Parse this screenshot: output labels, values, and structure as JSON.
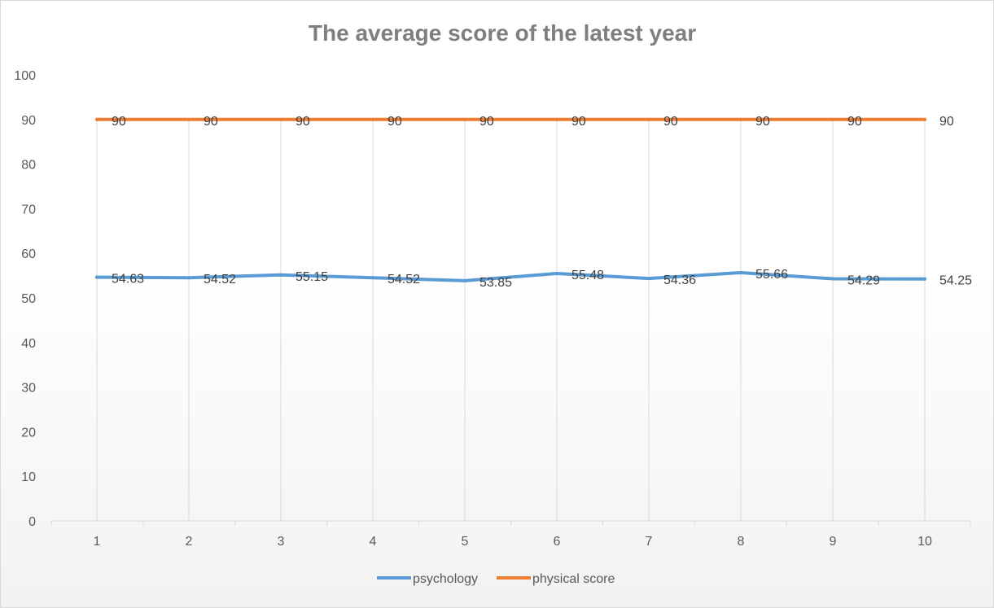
{
  "chart_data": {
    "type": "line",
    "title": "The average score of the latest year",
    "xlabel": "",
    "ylabel": "",
    "categories": [
      "1",
      "2",
      "3",
      "4",
      "5",
      "6",
      "7",
      "8",
      "9",
      "10"
    ],
    "ylim": [
      0,
      100
    ],
    "yticks": [
      "0",
      "10",
      "20",
      "30",
      "40",
      "50",
      "60",
      "70",
      "80",
      "90",
      "100"
    ],
    "grid": "vertical",
    "legend_position": "bottom",
    "series": [
      {
        "name": "psychology",
        "color": "#5b9bd5",
        "values": [
          54.63,
          54.52,
          55.15,
          54.52,
          53.85,
          55.48,
          54.36,
          55.66,
          54.29,
          54.25
        ],
        "labels": [
          "54.63",
          "54.52",
          "55.15",
          "54.52",
          "53.85",
          "55.48",
          "54.36",
          "55.66",
          "54.29",
          "54.25"
        ]
      },
      {
        "name": "physical score",
        "color": "#ed7d31",
        "values": [
          90,
          90,
          90,
          90,
          90,
          90,
          90,
          90,
          90,
          90
        ],
        "labels": [
          "90",
          "90",
          "90",
          "90",
          "90",
          "90",
          "90",
          "90",
          "90",
          "90"
        ]
      }
    ]
  }
}
